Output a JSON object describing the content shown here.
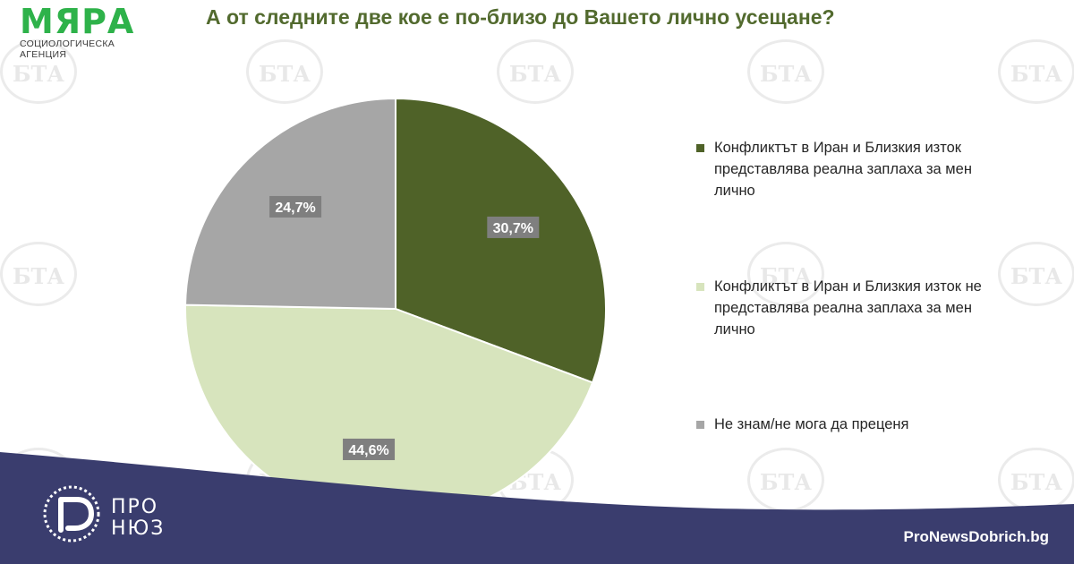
{
  "logo": {
    "name": "МЯРА",
    "subtitle": "СОЦИОЛОГИЧЕСКА АГЕНЦИЯ"
  },
  "watermark_text": "БТА",
  "chart_data": {
    "type": "pie",
    "title": "А от следните две кое е по-близо до Вашето лично усещане?",
    "slices": [
      {
        "label": "Конфликтът в Иран и Близкия изток представлява реална заплаха за мен лично",
        "value": 30.7,
        "display": "30,7%",
        "color": "#4f6228"
      },
      {
        "label": "Конфликтът в Иран и Близкия изток не представлява реална заплаха за мен лично",
        "value": 44.6,
        "display": "44,6%",
        "color": "#d7e4bd"
      },
      {
        "label": "Не знам/не мога да преценя",
        "value": 24.7,
        "display": "24,7%",
        "color": "#a6a6a6"
      }
    ],
    "start_angle_deg": 0,
    "direction": "clockwise",
    "legend_position": "right",
    "data_label_bg": "#7f7f7f"
  },
  "footer": {
    "brand_line1": "ПРО",
    "brand_line2": "НЮЗ",
    "site": "ProNewsDobrich.bg",
    "band_color": "#3a3d6e"
  }
}
